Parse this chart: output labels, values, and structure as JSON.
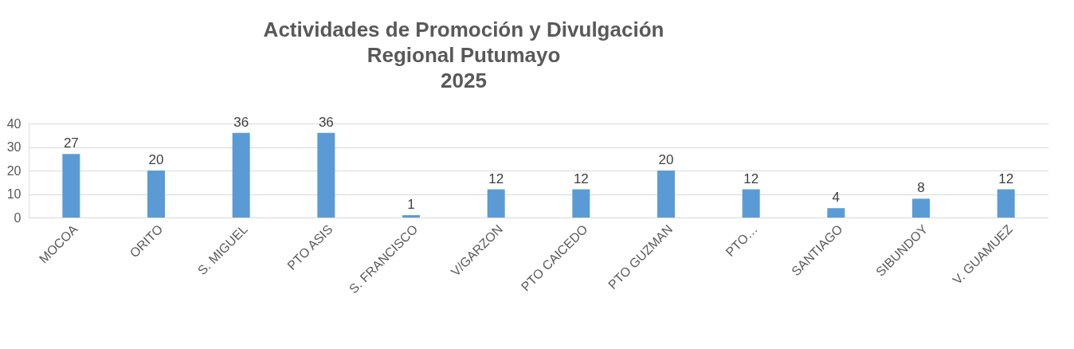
{
  "chart_data": {
    "type": "bar",
    "title": [
      "Actividades de Promoción y Divulgación",
      "Regional Putumayo",
      "2025"
    ],
    "categories": [
      "MOCOA",
      "ORITO",
      "S. MIGUEL",
      "PTO ASIS",
      "S. FRANCISCO",
      "V/GARZON",
      "PTO CAICEDO",
      "PTO GUZMAN",
      "PTO…",
      "SANTIAGO",
      "SIBUNDOY",
      "V. GUAMUEZ"
    ],
    "values": [
      27,
      20,
      36,
      36,
      1,
      12,
      12,
      20,
      12,
      4,
      8,
      12
    ],
    "color": "#5b9bd5",
    "ylim": [
      0,
      40
    ],
    "yticks": [
      0,
      10,
      20,
      30,
      40
    ],
    "grid": "y",
    "data_labels": true
  }
}
